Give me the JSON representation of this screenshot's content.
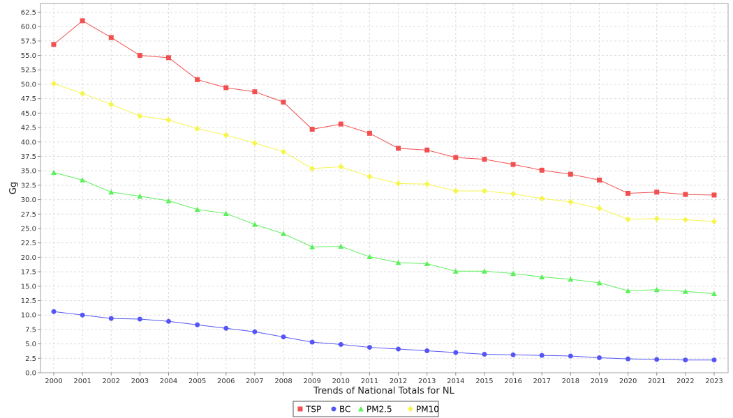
{
  "chart_data": {
    "type": "line",
    "title": "",
    "xlabel": "Trends of National Totals for NL",
    "ylabel": "Gg",
    "x": [
      "2000",
      "2001",
      "2002",
      "2003",
      "2004",
      "2005",
      "2006",
      "2007",
      "2008",
      "2009",
      "2010",
      "2011",
      "2012",
      "2013",
      "2014",
      "2015",
      "2016",
      "2017",
      "2018",
      "2019",
      "2020",
      "2021",
      "2022",
      "2023"
    ],
    "ylim": [
      0,
      64
    ],
    "yticks": [
      "0.0",
      "2.5",
      "5.0",
      "7.5",
      "10.0",
      "12.5",
      "15.0",
      "17.5",
      "20.0",
      "22.5",
      "25.0",
      "27.5",
      "30.0",
      "32.5",
      "35.0",
      "37.5",
      "40.0",
      "42.5",
      "45.0",
      "47.5",
      "50.0",
      "52.5",
      "55.0",
      "57.5",
      "60.0",
      "62.5"
    ],
    "grid": true,
    "legend_position": "bottom",
    "series": [
      {
        "name": "TSP",
        "color": "#f25050",
        "marker": "square",
        "values": [
          56.9,
          61.0,
          58.1,
          55.0,
          54.6,
          50.8,
          49.4,
          48.7,
          46.9,
          42.2,
          43.1,
          41.5,
          38.9,
          38.6,
          37.3,
          37.0,
          36.1,
          35.1,
          34.4,
          33.4,
          31.1,
          31.3,
          30.9,
          30.8
        ]
      },
      {
        "name": "BC",
        "color": "#5555f5",
        "marker": "circle",
        "values": [
          10.6,
          10.0,
          9.4,
          9.3,
          8.9,
          8.3,
          7.7,
          7.1,
          6.2,
          5.3,
          4.9,
          4.4,
          4.1,
          3.8,
          3.5,
          3.2,
          3.1,
          3.0,
          2.9,
          2.6,
          2.4,
          2.3,
          2.2,
          2.2
        ]
      },
      {
        "name": "PM2.5",
        "color": "#5cf05c",
        "marker": "triangle",
        "values": [
          34.7,
          33.4,
          31.3,
          30.6,
          29.8,
          28.3,
          27.6,
          25.7,
          24.1,
          21.8,
          21.9,
          20.1,
          19.1,
          18.9,
          17.6,
          17.6,
          17.2,
          16.6,
          16.2,
          15.6,
          14.2,
          14.4,
          14.1,
          13.7
        ]
      },
      {
        "name": "PM10",
        "color": "#f5f550",
        "marker": "diamond",
        "values": [
          50.1,
          48.4,
          46.5,
          44.5,
          43.8,
          42.3,
          41.2,
          39.8,
          38.3,
          35.4,
          35.7,
          34.0,
          32.8,
          32.7,
          31.5,
          31.5,
          31.0,
          30.2,
          29.6,
          28.5,
          26.6,
          26.7,
          26.5,
          26.2
        ]
      }
    ]
  }
}
